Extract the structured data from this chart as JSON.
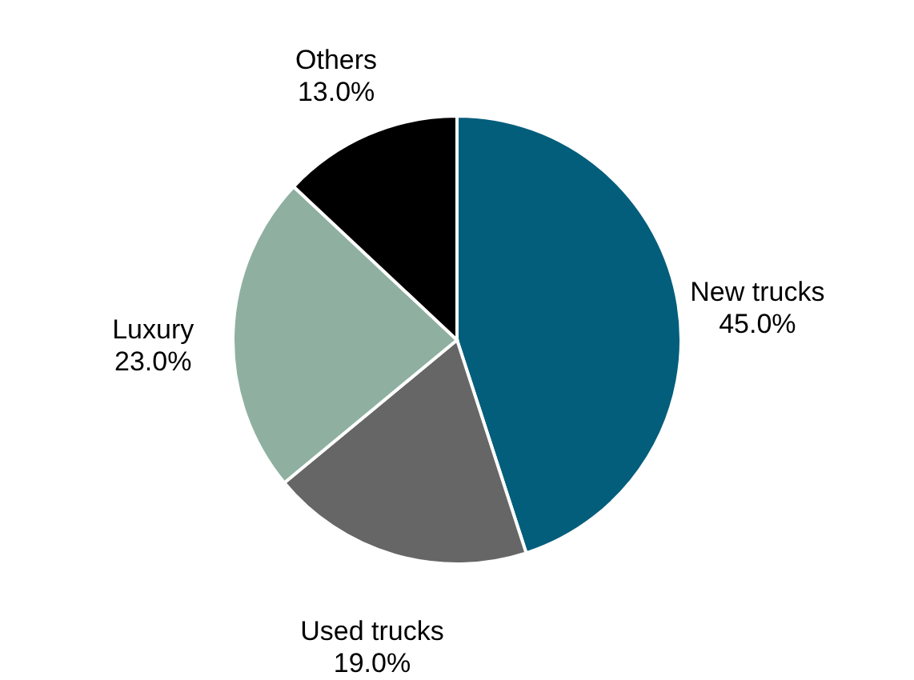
{
  "chart_data": {
    "type": "pie",
    "categories": [
      "New trucks",
      "Used trucks",
      "Luxury",
      "Others"
    ],
    "values": [
      45,
      19,
      23,
      13
    ],
    "value_labels": [
      "45.0%",
      "19.0%",
      "23.0%",
      "13.0%"
    ],
    "colors": [
      "#035e7b",
      "#666666",
      "#8fb0a0",
      "#000000"
    ],
    "legend": false
  }
}
